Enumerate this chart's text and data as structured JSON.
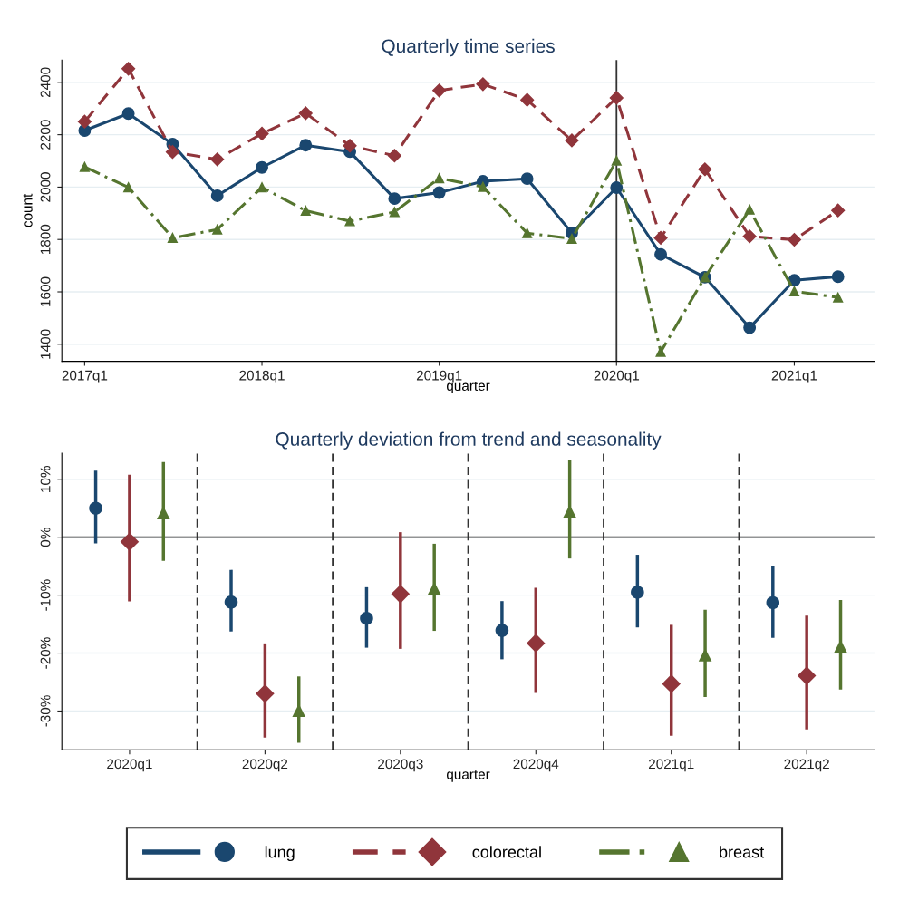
{
  "chart_data": [
    {
      "type": "line",
      "title": "Quarterly time series",
      "xlabel": "quarter",
      "ylabel": "count",
      "x": [
        "2017-01",
        "2017-04",
        "2017-07",
        "2017-10",
        "2018-01",
        "2018-04",
        "2018-07",
        "2018-10",
        "2019-01",
        "2019-04",
        "2019-07",
        "2019-10",
        "2020-01",
        "2020-04",
        "2020-07",
        "2020-10",
        "2021-01",
        "2021-04"
      ],
      "xlim": [
        "2016-11-15",
        "2021-06-15"
      ],
      "xticks": [
        {
          "value": "2017-01",
          "label": "2017q1"
        },
        {
          "value": "2018-01",
          "label": "2018q1"
        },
        {
          "value": "2019-01",
          "label": "2019q1"
        },
        {
          "value": "2020-01",
          "label": "2020q1"
        },
        {
          "value": "2021-01",
          "label": "2021q1"
        }
      ],
      "ylim": [
        1335,
        2485
      ],
      "yticks": [
        1400,
        1600,
        1800,
        2000,
        2200,
        2400
      ],
      "grid": "y",
      "ref_lines": [
        {
          "axis": "x",
          "value": "2020-01",
          "color": "#333333",
          "line_style": "solid"
        }
      ],
      "series": [
        {
          "color": "#1a476f",
          "marker": "circle",
          "line_style": "solid",
          "values": [
            2216,
            2281,
            2164,
            1967,
            2075,
            2160,
            2135,
            1956,
            1979,
            2022,
            2032,
            1825,
            1998,
            1743,
            1656,
            1463,
            1644,
            1658
          ]
        },
        {
          "color": "#90353b",
          "marker": "diamond",
          "line_style": "dashed",
          "values": [
            2250,
            2452,
            2134,
            2106,
            2204,
            2282,
            2158,
            2120,
            2369,
            2393,
            2333,
            2178,
            2341,
            1806,
            2068,
            1812,
            1799,
            1911
          ]
        },
        {
          "color": "#55752f",
          "marker": "triangle",
          "line_style": "dashdot",
          "values": [
            2077,
            1999,
            1806,
            1838,
            1999,
            1910,
            1870,
            1905,
            2034,
            2001,
            1824,
            1803,
            2101,
            1371,
            1656,
            1914,
            1602,
            1579
          ]
        }
      ]
    },
    {
      "type": "scatter",
      "title": "Quarterly deviation from trend and seasonality",
      "xlabel": "quarter",
      "categories": [
        "2020q1",
        "2020q2",
        "2020q3",
        "2020q4",
        "2021q1",
        "2021q2"
      ],
      "ylim": [
        -36.7,
        14.5
      ],
      "yticks": [
        {
          "value": -30,
          "label": "-30%"
        },
        {
          "value": -20,
          "label": "-20%"
        },
        {
          "value": -10,
          "label": "-10%"
        },
        {
          "value": 0,
          "label": "0%"
        },
        {
          "value": 10,
          "label": "10%"
        }
      ],
      "grid": "y",
      "legend": "bottom",
      "ref_lines": [
        {
          "axis": "y",
          "value": 0,
          "color": "#333333",
          "line_style": "solid"
        }
      ],
      "series": [
        {
          "name": "lung",
          "color": "#1a476f",
          "marker": "circle",
          "line_style": "solid",
          "values": [
            5.0,
            -11.2,
            -14.0,
            -16.1,
            -9.5,
            -11.3
          ],
          "errors": [
            [
              -0.8,
              11.2
            ],
            [
              -16.0,
              -5.9
            ],
            [
              -18.8,
              -8.9
            ],
            [
              -20.8,
              -11.3
            ],
            [
              -15.3,
              -3.3
            ],
            [
              -17.1,
              -5.2
            ]
          ]
        },
        {
          "name": "colorectal",
          "color": "#90353b",
          "marker": "diamond",
          "line_style": "dashed",
          "values": [
            -0.8,
            -27.0,
            -9.8,
            -18.3,
            -25.3,
            -23.9
          ],
          "errors": [
            [
              -10.8,
              10.5
            ],
            [
              -34.3,
              -18.6
            ],
            [
              -19.0,
              0.6
            ],
            [
              -26.6,
              -9.0
            ],
            [
              -34.0,
              -15.4
            ],
            [
              -32.9,
              -13.8
            ]
          ]
        },
        {
          "name": "breast",
          "color": "#55752f",
          "marker": "triangle",
          "line_style": "dashdot",
          "values": [
            4.2,
            -29.9,
            -8.8,
            4.5,
            -20.3,
            -18.8
          ],
          "errors": [
            [
              -3.8,
              12.7
            ],
            [
              -35.2,
              -24.3
            ],
            [
              -15.9,
              -1.4
            ],
            [
              -3.4,
              13.1
            ],
            [
              -27.3,
              -12.8
            ],
            [
              -26.0,
              -11.1
            ]
          ]
        }
      ]
    }
  ]
}
